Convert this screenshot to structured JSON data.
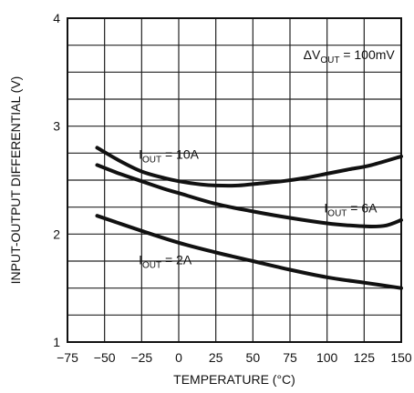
{
  "chart_data": {
    "type": "line",
    "title": "",
    "xlabel": "TEMPERATURE (°C)",
    "ylabel": "INPUT-OUTPUT DIFFERENTIAL (V)",
    "xlim": [
      -75,
      150
    ],
    "ylim": [
      1,
      4
    ],
    "x_ticks": [
      -75,
      -50,
      -25,
      0,
      25,
      50,
      75,
      100,
      125,
      150
    ],
    "x_tick_labels": [
      "−75",
      "−50",
      "−25",
      "0",
      "25",
      "50",
      "75",
      "100",
      "125",
      "150"
    ],
    "y_ticks": [
      1,
      2,
      3,
      4
    ],
    "y_tick_labels": [
      "1",
      "2",
      "3",
      "4"
    ],
    "grid": true,
    "annotation": {
      "prefix": "ΔV",
      "sub": "OUT",
      "suffix": " = 100mV",
      "x": 84,
      "y": 3.62
    },
    "series": [
      {
        "name_prefix": "I",
        "name_sub": "OUT",
        "name_suffix": " = 10A",
        "label_x": -27,
        "label_y": 2.7,
        "x": [
          -55,
          -40,
          -25,
          -10,
          0,
          15,
          25,
          40,
          55,
          70,
          85,
          100,
          115,
          130,
          150
        ],
        "values": [
          2.8,
          2.68,
          2.58,
          2.52,
          2.49,
          2.46,
          2.45,
          2.45,
          2.47,
          2.49,
          2.52,
          2.56,
          2.6,
          2.64,
          2.72
        ]
      },
      {
        "name_prefix": "I",
        "name_sub": "OUT",
        "name_suffix": " = 6A",
        "label_x": 98,
        "label_y": 2.2,
        "x": [
          -55,
          -40,
          -25,
          -10,
          0,
          25,
          50,
          75,
          100,
          115,
          130,
          140,
          150
        ],
        "values": [
          2.64,
          2.56,
          2.49,
          2.42,
          2.38,
          2.28,
          2.21,
          2.15,
          2.1,
          2.08,
          2.07,
          2.08,
          2.13
        ]
      },
      {
        "name_prefix": "I",
        "name_sub": "OUT",
        "name_suffix": " = 2A",
        "label_x": -27,
        "label_y": 1.72,
        "x": [
          -55,
          -25,
          0,
          25,
          50,
          75,
          100,
          125,
          150
        ],
        "values": [
          2.17,
          2.03,
          1.92,
          1.83,
          1.75,
          1.67,
          1.6,
          1.55,
          1.5
        ]
      }
    ]
  }
}
